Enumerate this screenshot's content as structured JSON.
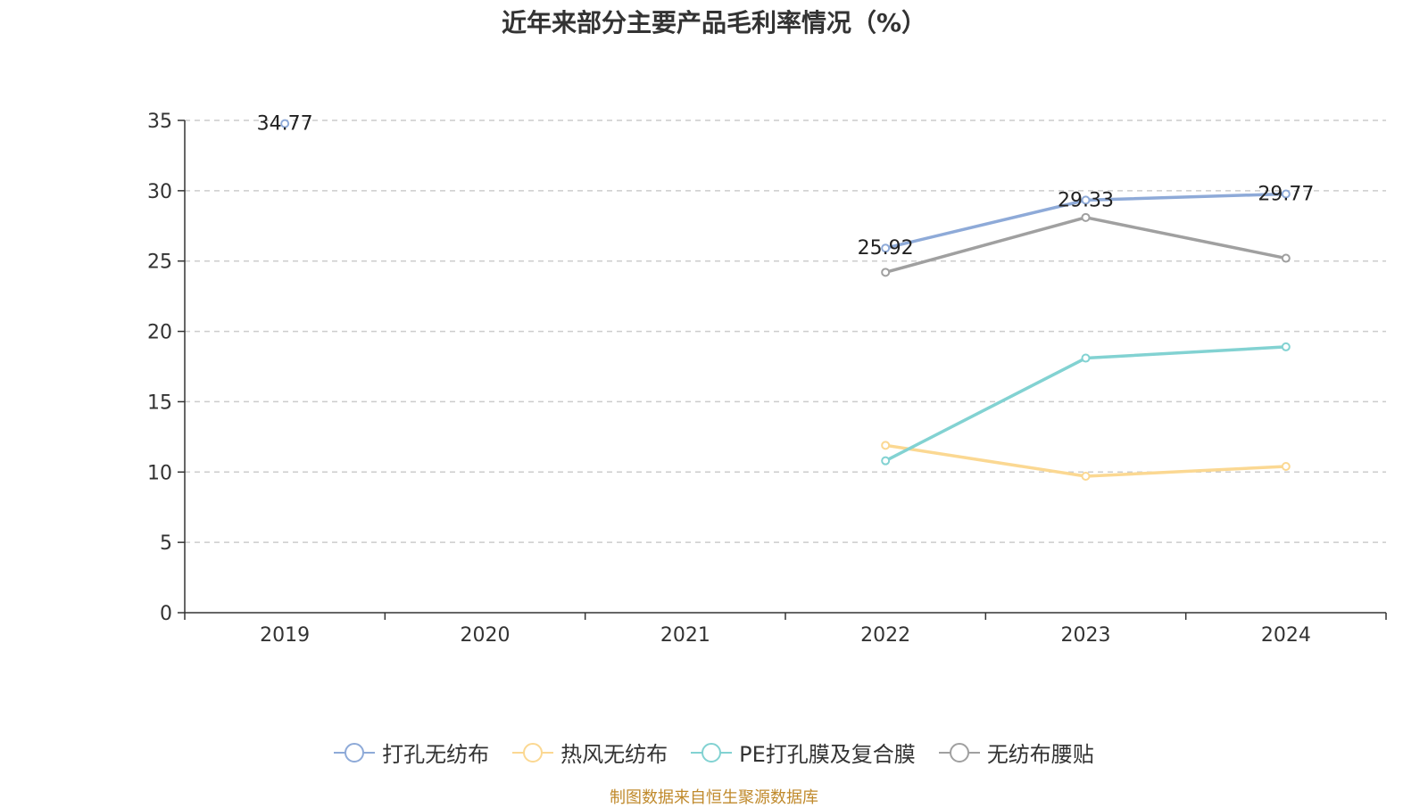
{
  "chart_data": {
    "type": "line",
    "title": "近年来部分主要产品毛利率情况（%）",
    "xlabel": "",
    "ylabel": "",
    "categories": [
      "2019",
      "2020",
      "2021",
      "2022",
      "2023",
      "2024"
    ],
    "ylim": [
      0,
      35
    ],
    "yticks": [
      "0",
      "5",
      "10",
      "15",
      "20",
      "25",
      "30",
      "35"
    ],
    "grid": true,
    "legend_position": "bottom",
    "series": [
      {
        "name": "打孔无纺布",
        "color": "#8eaad8",
        "values": [
          34.77,
          null,
          null,
          25.92,
          29.33,
          29.77
        ],
        "labels": [
          "34.77",
          null,
          null,
          "25.92",
          "29.33",
          "29.77"
        ]
      },
      {
        "name": "热风无纺布",
        "color": "#fbd892",
        "values": [
          null,
          null,
          null,
          11.9,
          9.7,
          10.4
        ],
        "labels": [
          null,
          null,
          null,
          null,
          null,
          null
        ]
      },
      {
        "name": "PE打孔膜及复合膜",
        "color": "#82d2d2",
        "values": [
          null,
          null,
          null,
          10.8,
          18.1,
          18.9
        ],
        "labels": [
          null,
          null,
          null,
          null,
          null,
          null
        ]
      },
      {
        "name": "无纺布腰贴",
        "color": "#a0a0a0",
        "values": [
          null,
          null,
          null,
          24.2,
          28.1,
          25.2
        ],
        "labels": [
          null,
          null,
          null,
          null,
          null,
          null
        ]
      }
    ]
  },
  "source_note": "制图数据来自恒生聚源数据库"
}
